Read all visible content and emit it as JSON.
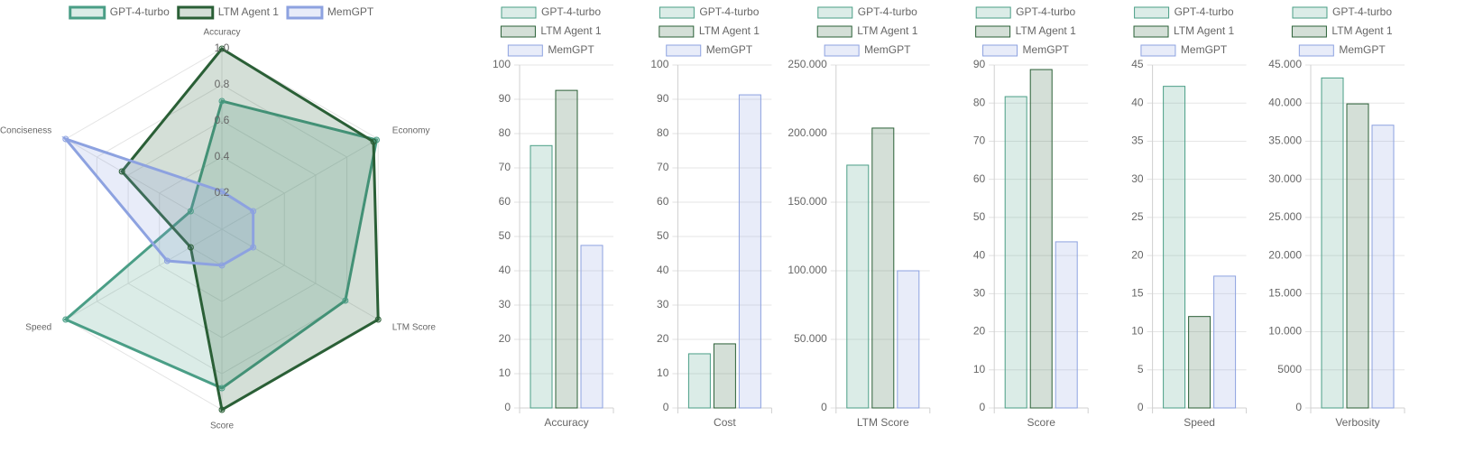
{
  "chart_data": [
    {
      "type": "radar",
      "categories": [
        "Accuracy",
        "Economy",
        "LTM Score",
        "Score",
        "Speed",
        "Conciseness"
      ],
      "ylim": [
        0,
        1
      ],
      "yticks": [
        0.2,
        0.4,
        0.6,
        0.8,
        {
          "value": 1,
          "label": "1.0"
        }
      ],
      "grid": true,
      "series": [
        {
          "name": "GPT-4-turbo",
          "color": "#4a9e86",
          "fill": "rgba(74,158,134,0.2)",
          "values": [
            0.71,
            0.99,
            0.79,
            0.88,
            1.0,
            0.2
          ]
        },
        {
          "name": "LTM Agent 1",
          "color": "#2a5f36",
          "fill": "rgba(42,95,54,0.2)",
          "values": [
            1.0,
            0.97,
            1.0,
            1.0,
            0.2,
            0.64
          ]
        },
        {
          "name": "MemGPT",
          "color": "#8da2e0",
          "fill": "rgba(141,162,224,0.2)",
          "values": [
            0.21,
            0.2,
            0.2,
            0.2,
            0.35,
            1.0
          ]
        }
      ]
    },
    {
      "type": "bar",
      "categories": [
        "Accuracy"
      ],
      "ylim": [
        0,
        100
      ],
      "yticks": [
        0,
        10,
        20,
        30,
        40,
        50,
        60,
        70,
        80,
        90,
        100
      ],
      "grid": true,
      "series": [
        {
          "name": "GPT-4-turbo",
          "color": "#4a9e86",
          "fill": "rgba(74,158,134,0.2)",
          "values": [
            76.5
          ]
        },
        {
          "name": "LTM Agent 1",
          "color": "#2a5f36",
          "fill": "rgba(42,95,54,0.2)",
          "values": [
            92.6
          ]
        },
        {
          "name": "MemGPT",
          "color": "#8da2e0",
          "fill": "rgba(141,162,224,0.2)",
          "values": [
            47.4
          ]
        }
      ]
    },
    {
      "type": "bar",
      "categories": [
        "Cost"
      ],
      "ylim": [
        0,
        100
      ],
      "yticks": [
        0,
        10,
        20,
        30,
        40,
        50,
        60,
        70,
        80,
        90,
        100
      ],
      "grid": true,
      "series": [
        {
          "name": "GPT-4-turbo",
          "color": "#4a9e86",
          "fill": "rgba(74,158,134,0.2)",
          "values": [
            15.8
          ]
        },
        {
          "name": "LTM Agent 1",
          "color": "#2a5f36",
          "fill": "rgba(42,95,54,0.2)",
          "values": [
            18.7
          ]
        },
        {
          "name": "MemGPT",
          "color": "#8da2e0",
          "fill": "rgba(141,162,224,0.2)",
          "values": [
            91.3
          ]
        }
      ]
    },
    {
      "type": "bar",
      "categories": [
        "LTM Score"
      ],
      "ylim": [
        0,
        250000
      ],
      "yticks": [
        0,
        {
          "value": 50000,
          "label": "50.000"
        },
        {
          "value": 100000,
          "label": "100.000"
        },
        {
          "value": 150000,
          "label": "150.000"
        },
        {
          "value": 200000,
          "label": "200.000"
        },
        {
          "value": 250000,
          "label": "250.000"
        }
      ],
      "grid": true,
      "series": [
        {
          "name": "GPT-4-turbo",
          "color": "#4a9e86",
          "fill": "rgba(74,158,134,0.2)",
          "values": [
            177000
          ]
        },
        {
          "name": "LTM Agent 1",
          "color": "#2a5f36",
          "fill": "rgba(42,95,54,0.2)",
          "values": [
            204000
          ]
        },
        {
          "name": "MemGPT",
          "color": "#8da2e0",
          "fill": "rgba(141,162,224,0.2)",
          "values": [
            100000
          ]
        }
      ]
    },
    {
      "type": "bar",
      "categories": [
        "Score"
      ],
      "ylim": [
        0,
        90
      ],
      "yticks": [
        0,
        10,
        20,
        30,
        40,
        50,
        60,
        70,
        80,
        90
      ],
      "grid": true,
      "series": [
        {
          "name": "GPT-4-turbo",
          "color": "#4a9e86",
          "fill": "rgba(74,158,134,0.2)",
          "values": [
            81.7
          ]
        },
        {
          "name": "LTM Agent 1",
          "color": "#2a5f36",
          "fill": "rgba(42,95,54,0.2)",
          "values": [
            88.8
          ]
        },
        {
          "name": "MemGPT",
          "color": "#8da2e0",
          "fill": "rgba(141,162,224,0.2)",
          "values": [
            43.6
          ]
        }
      ]
    },
    {
      "type": "bar",
      "categories": [
        "Speed"
      ],
      "ylim": [
        0,
        45
      ],
      "yticks": [
        0,
        5,
        10,
        15,
        20,
        25,
        30,
        35,
        40,
        45
      ],
      "grid": true,
      "series": [
        {
          "name": "GPT-4-turbo",
          "color": "#4a9e86",
          "fill": "rgba(74,158,134,0.2)",
          "values": [
            42.2
          ]
        },
        {
          "name": "LTM Agent 1",
          "color": "#2a5f36",
          "fill": "rgba(42,95,54,0.2)",
          "values": [
            12.0
          ]
        },
        {
          "name": "MemGPT",
          "color": "#8da2e0",
          "fill": "rgba(141,162,224,0.2)",
          "values": [
            17.3
          ]
        }
      ]
    },
    {
      "type": "bar",
      "categories": [
        "Verbosity"
      ],
      "ylim": [
        0,
        45000
      ],
      "yticks": [
        0,
        5000,
        {
          "value": 10000,
          "label": "10.000"
        },
        {
          "value": 15000,
          "label": "15.000"
        },
        {
          "value": 20000,
          "label": "20.000"
        },
        {
          "value": 25000,
          "label": "25.000"
        },
        {
          "value": 30000,
          "label": "30.000"
        },
        {
          "value": 35000,
          "label": "35.000"
        },
        {
          "value": 40000,
          "label": "40.000"
        },
        {
          "value": 45000,
          "label": "45.000"
        }
      ],
      "grid": true,
      "series": [
        {
          "name": "GPT-4-turbo",
          "color": "#4a9e86",
          "fill": "rgba(74,158,134,0.2)",
          "values": [
            43300
          ]
        },
        {
          "name": "LTM Agent 1",
          "color": "#2a5f36",
          "fill": "rgba(42,95,54,0.2)",
          "values": [
            39900
          ]
        },
        {
          "name": "MemGPT",
          "color": "#8da2e0",
          "fill": "rgba(141,162,224,0.2)",
          "values": [
            37100
          ]
        }
      ]
    }
  ]
}
